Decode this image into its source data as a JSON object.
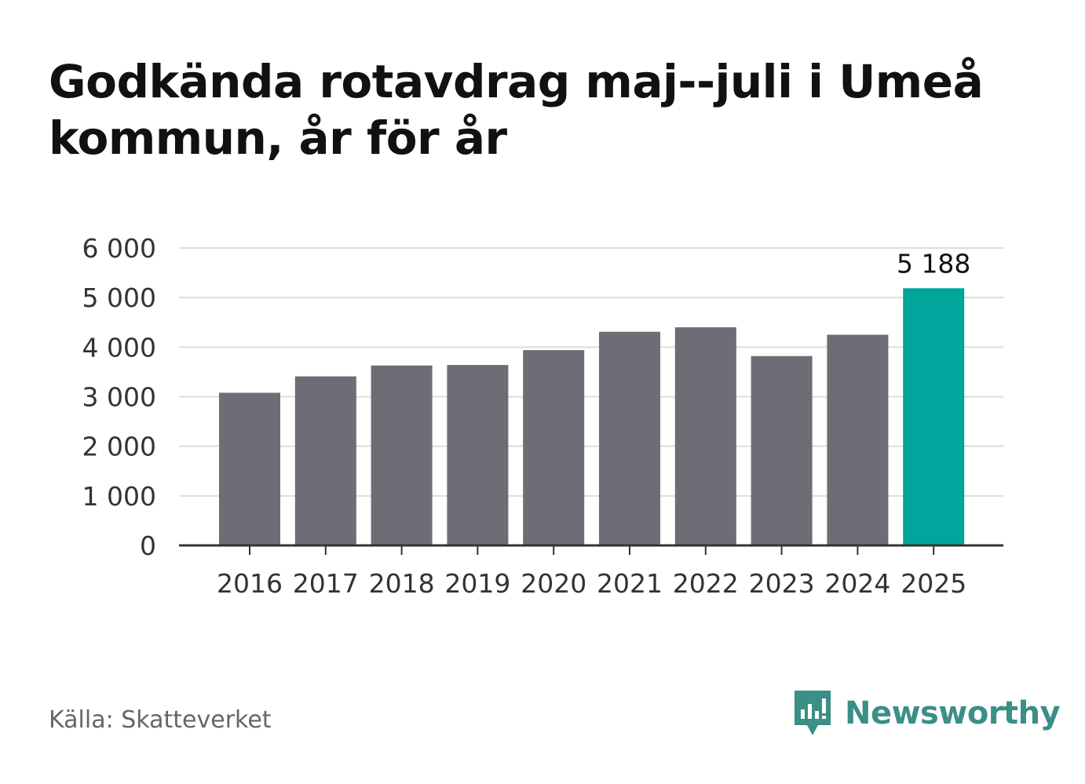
{
  "title": "Godkända rotavdrag maj--juli i Umeå kommun, år för år",
  "source": "Källa: Skatteverket",
  "brand": {
    "name": "Newsworthy",
    "icon": "newsworthy-logo-icon",
    "color": "#3a8f87"
  },
  "chart_data": {
    "type": "bar",
    "categories": [
      "2016",
      "2017",
      "2018",
      "2019",
      "2020",
      "2021",
      "2022",
      "2023",
      "2024",
      "2025"
    ],
    "values": [
      3080,
      3410,
      3630,
      3640,
      3940,
      4310,
      4400,
      3820,
      4250,
      5188
    ],
    "ylim": [
      0,
      6000
    ],
    "yticks": [
      0,
      1000,
      2000,
      3000,
      4000,
      5000,
      6000
    ],
    "ytick_labels": [
      "0",
      "1 000",
      "2 000",
      "3 000",
      "4 000",
      "5 000",
      "6 000"
    ],
    "grid": true,
    "highlight_index": 9,
    "highlight_label": "5 188",
    "colors": {
      "bar": "#6e6d75",
      "highlight": "#00a69b",
      "grid": "#dddddd",
      "axis": "#333333"
    }
  }
}
